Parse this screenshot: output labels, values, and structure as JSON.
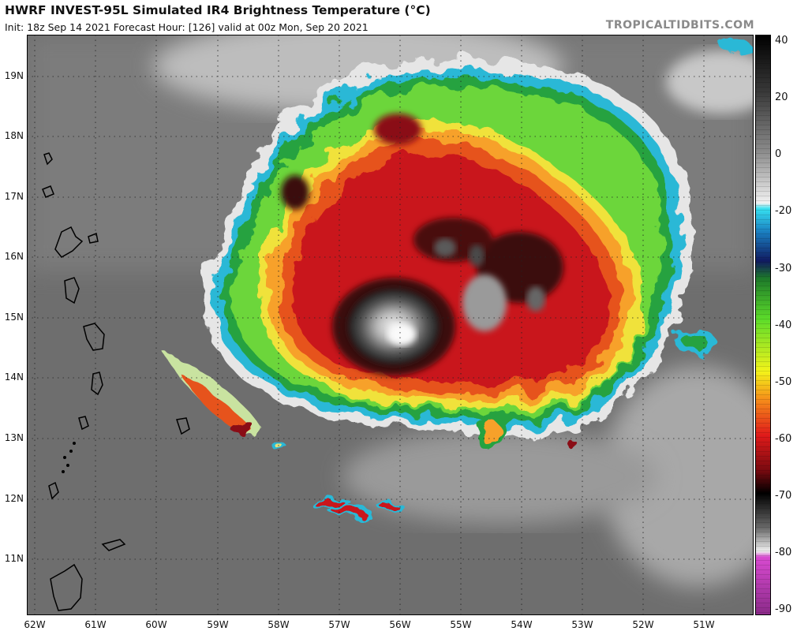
{
  "header": {
    "title": "HWRF INVEST-95L Simulated IR4 Brightness Temperature (°C)",
    "subtitle": "Init: 18z Sep 14 2021   Forecast Hour: [126]   valid at 00z Mon, Sep 20 2021",
    "brand": "TROPICALTIDBITS.COM"
  },
  "map": {
    "lat_labels": [
      "19N",
      "18N",
      "17N",
      "16N",
      "15N",
      "14N",
      "13N",
      "12N",
      "11N"
    ],
    "lon_labels": [
      "62W",
      "61W",
      "60W",
      "59W",
      "58W",
      "57W",
      "56W",
      "55W",
      "54W",
      "53W",
      "52W",
      "51W"
    ]
  },
  "colorbar": {
    "labels": [
      "40",
      "20",
      "0",
      "-20",
      "-30",
      "-40",
      "-50",
      "-60",
      "-70",
      "-80",
      "-90"
    ]
  }
}
